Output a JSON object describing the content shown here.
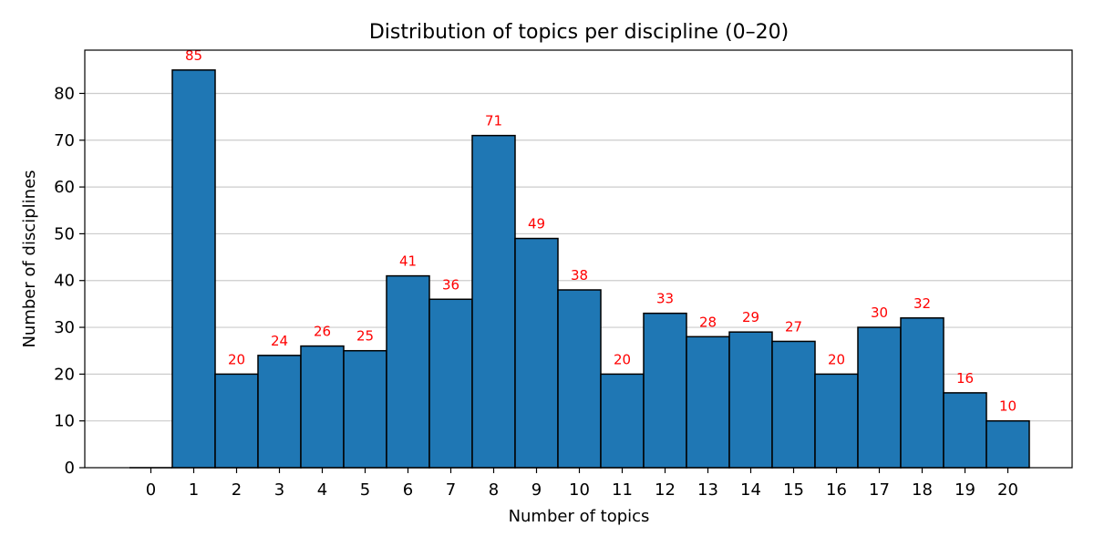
{
  "chart_data": {
    "type": "bar",
    "title": "Distribution of topics per discipline (0–20)",
    "xlabel": "Number of topics",
    "ylabel": "Number of disciplines",
    "categories": [
      "0",
      "1",
      "2",
      "3",
      "4",
      "5",
      "6",
      "7",
      "8",
      "9",
      "10",
      "11",
      "12",
      "13",
      "14",
      "15",
      "16",
      "17",
      "18",
      "19",
      "20"
    ],
    "values": [
      0,
      85,
      20,
      24,
      26,
      25,
      41,
      36,
      71,
      49,
      38,
      20,
      33,
      28,
      29,
      27,
      20,
      30,
      32,
      16,
      10
    ],
    "data_labels": [
      "",
      "85",
      "20",
      "24",
      "26",
      "25",
      "41",
      "36",
      "71",
      "49",
      "38",
      "20",
      "33",
      "28",
      "29",
      "27",
      "20",
      "30",
      "32",
      "16",
      "10"
    ],
    "yticks": [
      0,
      10,
      20,
      30,
      40,
      50,
      60,
      70,
      80
    ],
    "ylim": [
      0,
      89.25
    ],
    "grid": "horizontal",
    "colors": {
      "bar_fill": "#1f77b4",
      "bar_edge": "#000000",
      "data_label": "#ff0000",
      "grid": "#cccccc"
    }
  }
}
